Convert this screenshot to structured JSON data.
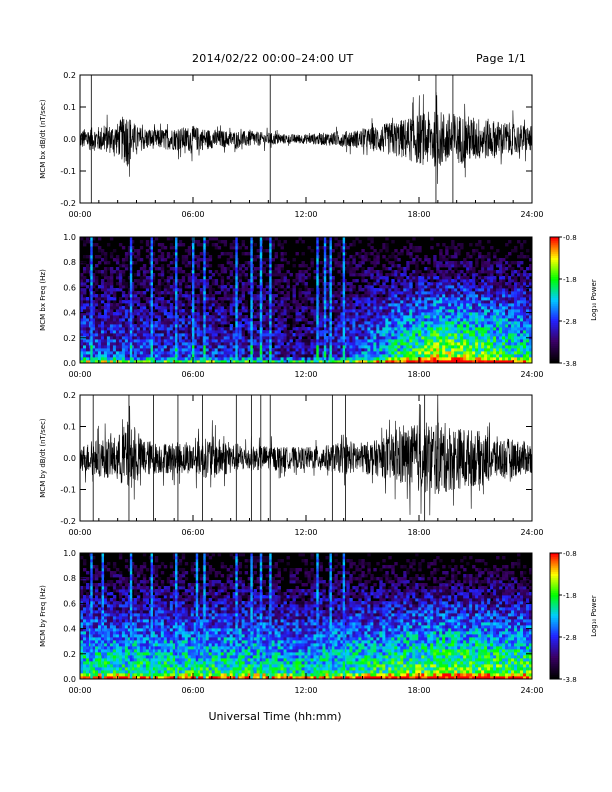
{
  "header": {
    "title": "2014/02/22  00:00–24:00 UT",
    "page_label": "Page 1/1"
  },
  "footer": {
    "xlabel": "Universal Time (hh:mm)"
  },
  "colors": {
    "trace": "#000000",
    "colormap": [
      "#000000",
      "#3a0066",
      "#2222ff",
      "#00ccff",
      "#00ff00",
      "#ffff00",
      "#ff0000"
    ]
  },
  "chart_data": [
    {
      "type": "line",
      "ylabel": "MCM bx dB/dt (nT/sec)",
      "xlim": [
        0,
        24
      ],
      "ylim": [
        -0.2,
        0.2
      ],
      "x_ticks": [
        "00:00",
        "06:00",
        "12:00",
        "18:00",
        "24:00"
      ],
      "y_ticks": [
        "0.2",
        "0.1",
        "0.0",
        "-0.1",
        "-0.2"
      ],
      "envelope": {
        "x": [
          0,
          1,
          2,
          2.5,
          3,
          4,
          6,
          7,
          8,
          9,
          10,
          11,
          12,
          13,
          14,
          15,
          16,
          17,
          18,
          19,
          20,
          21,
          22,
          23,
          24
        ],
        "amp": [
          0.03,
          0.04,
          0.05,
          0.09,
          0.04,
          0.03,
          0.04,
          0.03,
          0.025,
          0.025,
          0.02,
          0.015,
          0.015,
          0.02,
          0.025,
          0.03,
          0.045,
          0.06,
          0.08,
          0.09,
          0.08,
          0.07,
          0.06,
          0.05,
          0.04
        ]
      },
      "spikes_x": [
        0.6,
        10.1,
        18.9,
        19.8
      ]
    },
    {
      "type": "heatmap",
      "ylabel": "MCM bx Freq (Hz)",
      "xlim": [
        0,
        24
      ],
      "ylim": [
        0.0,
        1.0
      ],
      "x_ticks": [
        "00:00",
        "06:00",
        "12:00",
        "18:00",
        "24:00"
      ],
      "y_ticks": [
        "1.0",
        "0.8",
        "0.6",
        "0.4",
        "0.2",
        "0.0"
      ],
      "colorbar": {
        "label": "Log₁₀ Power",
        "ticks": [
          "-0.8",
          "-1.8",
          "-2.8",
          "-3.8"
        ],
        "range": [
          -3.8,
          -0.8
        ]
      },
      "activity": {
        "x": [
          0,
          3,
          6,
          9,
          12,
          15,
          17,
          19,
          21,
          24
        ],
        "level": [
          0.35,
          0.3,
          0.3,
          0.25,
          0.2,
          0.35,
          0.55,
          0.7,
          0.65,
          0.5
        ]
      },
      "stripes_x": [
        0.6,
        2.7,
        3.8,
        5.1,
        6.0,
        6.6,
        8.3,
        9.1,
        9.6,
        10.1,
        12.6,
        13.0,
        13.3,
        14.0
      ]
    },
    {
      "type": "line",
      "ylabel": "MCM by dB/dt (nT/sec)",
      "xlim": [
        0,
        24
      ],
      "ylim": [
        -0.2,
        0.2
      ],
      "x_ticks": [
        "00:00",
        "06:00",
        "12:00",
        "18:00",
        "24:00"
      ],
      "y_ticks": [
        "0.2",
        "0.1",
        "0.0",
        "-0.1",
        "-0.2"
      ],
      "envelope": {
        "x": [
          0,
          1,
          2,
          2.5,
          3,
          4,
          6,
          7,
          8,
          9,
          10,
          11,
          12,
          13,
          14,
          15,
          16,
          17,
          18,
          19,
          20,
          21,
          22,
          23,
          24
        ],
        "amp": [
          0.04,
          0.06,
          0.07,
          0.12,
          0.07,
          0.05,
          0.05,
          0.07,
          0.05,
          0.04,
          0.04,
          0.035,
          0.035,
          0.04,
          0.05,
          0.05,
          0.06,
          0.09,
          0.11,
          0.12,
          0.1,
          0.09,
          0.07,
          0.06,
          0.05
        ]
      },
      "spikes_x": [
        0.7,
        2.6,
        3.9,
        5.2,
        6.5,
        8.3,
        9.1,
        9.6,
        10.1,
        13.4,
        14.1,
        18.3
      ]
    },
    {
      "type": "heatmap",
      "ylabel": "MCM by Freq (Hz)",
      "xlim": [
        0,
        24
      ],
      "ylim": [
        0.0,
        1.0
      ],
      "x_ticks": [
        "00:00",
        "06:00",
        "12:00",
        "18:00",
        "24:00"
      ],
      "y_ticks": [
        "1.0",
        "0.8",
        "0.6",
        "0.4",
        "0.2",
        "0.0"
      ],
      "colorbar": {
        "label": "Log₁₀ Power",
        "ticks": [
          "-0.8",
          "-1.8",
          "-2.8",
          "-3.8"
        ],
        "range": [
          -3.8,
          -0.8
        ]
      },
      "activity": {
        "x": [
          0,
          3,
          6,
          9,
          12,
          15,
          17,
          19,
          21,
          24
        ],
        "level": [
          0.55,
          0.55,
          0.55,
          0.55,
          0.5,
          0.55,
          0.6,
          0.65,
          0.65,
          0.6
        ]
      },
      "stripes_x": [
        0.6,
        1.2,
        2.7,
        3.8,
        5.1,
        6.2,
        6.6,
        8.3,
        9.1,
        9.6,
        10.1,
        12.6,
        13.3,
        14.0
      ]
    }
  ]
}
